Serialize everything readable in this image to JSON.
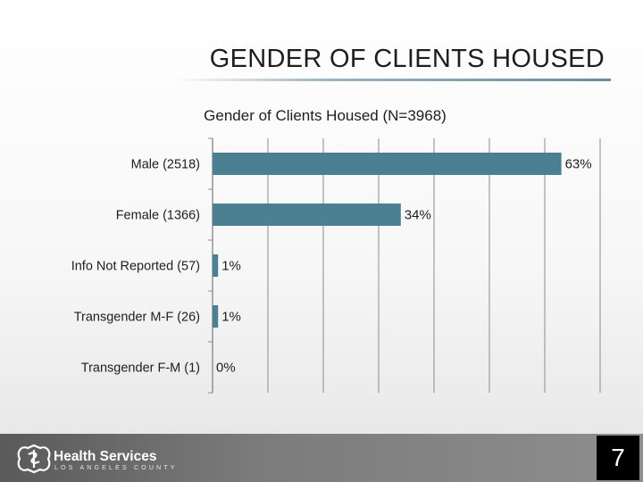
{
  "slide": {
    "title": "GENDER OF CLIENTS HOUSED",
    "page_number": "7"
  },
  "footer": {
    "logo_main": "Health Services",
    "logo_sub": "LOS ANGELES COUNTY"
  },
  "colors": {
    "bar": "#4b7f92",
    "grid": "#8c8c8c",
    "footer": "#7b7b7b"
  },
  "chart_data": {
    "type": "bar",
    "orientation": "horizontal",
    "title": "Gender of Clients Housed (N=3968)",
    "categories": [
      "Male (2518)",
      "Female (1366)",
      "Info Not Reported (57)",
      "Transgender M-F (26)",
      "Transgender F-M (1)"
    ],
    "values": [
      63,
      34,
      1,
      1,
      0
    ],
    "data_labels": [
      "63%",
      "34%",
      "1%",
      "1%",
      "0%"
    ],
    "xlim": [
      0,
      70
    ],
    "grid": true,
    "legend": "none"
  }
}
